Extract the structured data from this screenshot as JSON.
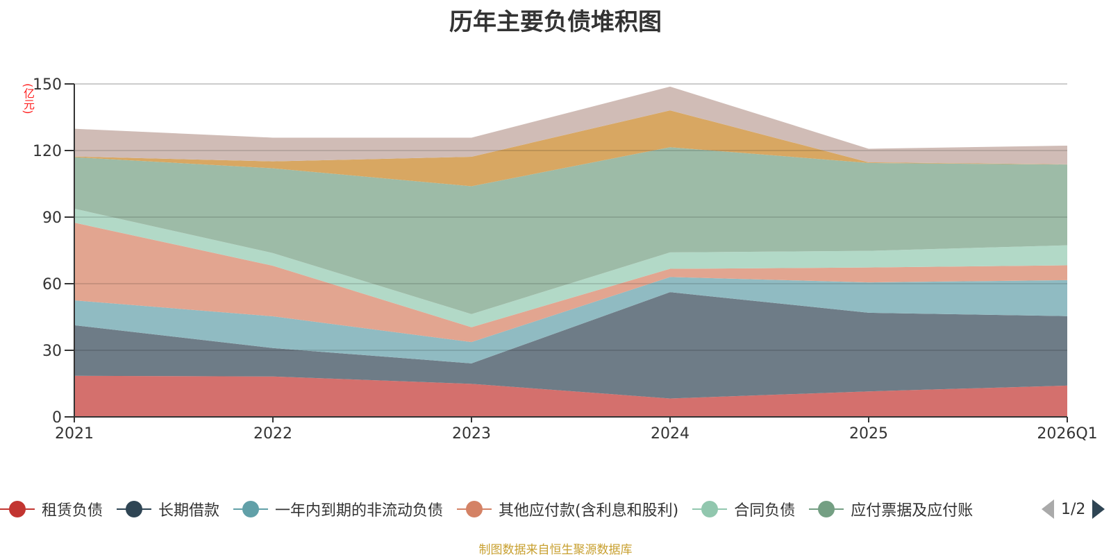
{
  "header": {
    "title": "历年主要负债堆积图"
  },
  "legend_pager": {
    "text": "1/2"
  },
  "footer": {
    "source": "制图数据来自恒生聚源数据库"
  },
  "chart_data": {
    "type": "area",
    "stacked": true,
    "title": "历年主要负债堆积图",
    "ylabel": "(亿元)",
    "xlabel": "",
    "categories": [
      "2021",
      "2022",
      "2023",
      "2024",
      "2025",
      "2026Q1"
    ],
    "ylim": [
      0,
      150
    ],
    "yticks": [
      0,
      30,
      60,
      90,
      120,
      150
    ],
    "grid": true,
    "legend_position": "bottom",
    "series": [
      {
        "name": "租赁负债",
        "color": "#c23531",
        "fill": "#d4706d",
        "values": [
          18.5,
          18.2,
          14.9,
          8.3,
          11.5,
          14.1
        ]
      },
      {
        "name": "长期借款",
        "color": "#2f4554",
        "fill": "#6e7c87",
        "values": [
          22.8,
          12.8,
          9.2,
          47.9,
          35.4,
          31.3
        ]
      },
      {
        "name": "一年内到期的非流动负债",
        "color": "#61a0a8",
        "fill": "#90bbc2",
        "values": [
          11.2,
          14.3,
          9.6,
          6.8,
          13.7,
          16.2
        ]
      },
      {
        "name": "其他应付款(含利息和股利)",
        "color": "#d48265",
        "fill": "#e2a590",
        "values": [
          35.0,
          22.8,
          6.7,
          3.7,
          6.7,
          6.7
        ]
      },
      {
        "name": "合同负债",
        "color": "#91c7ae",
        "fill": "#b2d9c7",
        "values": [
          6.3,
          5.7,
          5.9,
          7.4,
          7.5,
          9.0
        ]
      },
      {
        "name": "应付票据及应付账款",
        "legend_label": "应付票据及应付账",
        "color": "#749f83",
        "fill": "#9dbba7",
        "values": [
          23.2,
          38.2,
          57.6,
          47.4,
          39.6,
          36.4
        ]
      },
      {
        "name": "",
        "color": "#ca8622",
        "fill": "#d8a762",
        "values": [
          0.3,
          3.1,
          13.3,
          16.6,
          0.3,
          0.1
        ]
      },
      {
        "name": "",
        "color": "#bda29a",
        "fill": "#d0bcb6",
        "values": [
          12.5,
          10.7,
          8.6,
          10.7,
          6.1,
          8.4
        ]
      }
    ]
  }
}
